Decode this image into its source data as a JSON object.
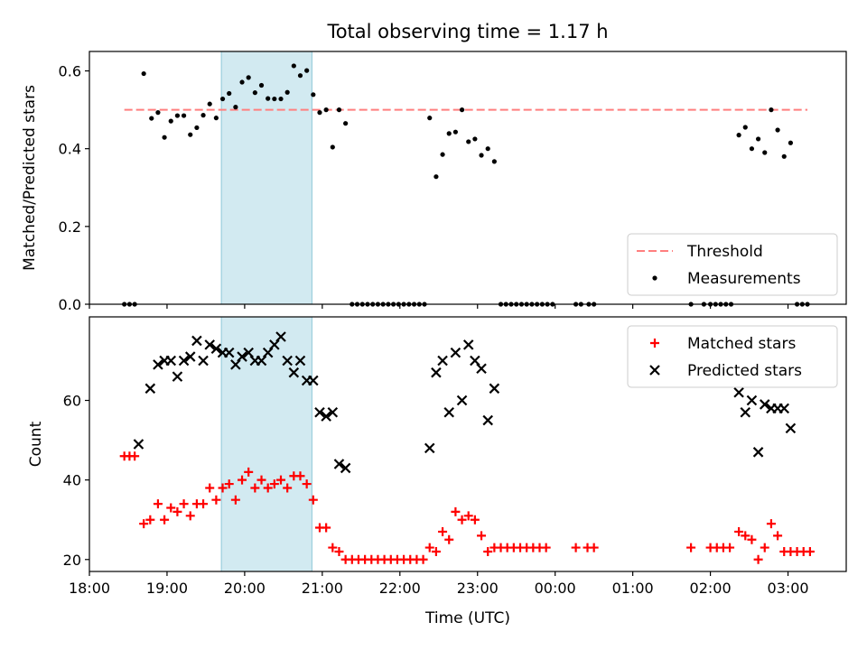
{
  "chart_data": [
    {
      "type": "scatter",
      "title": "Total observing time = 1.17 h",
      "ylabel": "Matched/Predicted stars",
      "xlim": [
        "18:00",
        "03:45"
      ],
      "ylim": [
        0,
        0.65
      ],
      "yticks": [
        0.0,
        0.2,
        0.4,
        0.6
      ],
      "ytick_labels": [
        "0.0",
        "0.2",
        "0.4",
        "0.6"
      ],
      "highlight_span": {
        "start": "19:42",
        "end": "20:52",
        "color": "#add8e6"
      },
      "threshold": {
        "name": "Threshold",
        "value": 0.5,
        "from": "18:27",
        "to": "03:15",
        "color": "#ff7f7f",
        "style": "dashed"
      },
      "series": [
        {
          "name": "Measurements",
          "color": "#000000",
          "marker": "dot",
          "points": [
            [
              "18:27",
              0.0
            ],
            [
              "18:31",
              0.0
            ],
            [
              "18:35",
              0.0
            ],
            [
              "18:42",
              0.593
            ],
            [
              "18:48",
              0.478
            ],
            [
              "18:53",
              0.493
            ],
            [
              "18:58",
              0.429
            ],
            [
              "19:03",
              0.471
            ],
            [
              "19:08",
              0.485
            ],
            [
              "19:13",
              0.485
            ],
            [
              "19:18",
              0.436
            ],
            [
              "19:23",
              0.454
            ],
            [
              "19:28",
              0.486
            ],
            [
              "19:33",
              0.515
            ],
            [
              "19:38",
              0.479
            ],
            [
              "19:43",
              0.528
            ],
            [
              "19:48",
              0.542
            ],
            [
              "19:53",
              0.507
            ],
            [
              "19:58",
              0.571
            ],
            [
              "20:03",
              0.583
            ],
            [
              "20:08",
              0.544
            ],
            [
              "20:13",
              0.563
            ],
            [
              "20:18",
              0.529
            ],
            [
              "20:23",
              0.528
            ],
            [
              "20:28",
              0.528
            ],
            [
              "20:33",
              0.545
            ],
            [
              "20:38",
              0.613
            ],
            [
              "20:43",
              0.588
            ],
            [
              "20:48",
              0.601
            ],
            [
              "20:53",
              0.539
            ],
            [
              "20:58",
              0.493
            ],
            [
              "21:03",
              0.5
            ],
            [
              "21:08",
              0.404
            ],
            [
              "21:13",
              0.5
            ],
            [
              "21:18",
              0.465
            ],
            [
              "21:23",
              0.0
            ],
            [
              "21:27",
              0.0
            ],
            [
              "21:31",
              0.0
            ],
            [
              "21:35",
              0.0
            ],
            [
              "21:39",
              0.0
            ],
            [
              "21:43",
              0.0
            ],
            [
              "21:47",
              0.0
            ],
            [
              "21:51",
              0.0
            ],
            [
              "21:55",
              0.0
            ],
            [
              "21:59",
              0.0
            ],
            [
              "22:03",
              0.0
            ],
            [
              "22:07",
              0.0
            ],
            [
              "22:11",
              0.0
            ],
            [
              "22:15",
              0.0
            ],
            [
              "22:19",
              0.0
            ],
            [
              "22:23",
              0.479
            ],
            [
              "22:28",
              0.328
            ],
            [
              "22:33",
              0.385
            ],
            [
              "22:38",
              0.439
            ],
            [
              "22:43",
              0.443
            ],
            [
              "22:48",
              0.5
            ],
            [
              "22:53",
              0.418
            ],
            [
              "22:58",
              0.425
            ],
            [
              "23:03",
              0.383
            ],
            [
              "23:08",
              0.4
            ],
            [
              "23:13",
              0.367
            ],
            [
              "23:18",
              0.0
            ],
            [
              "23:22",
              0.0
            ],
            [
              "23:26",
              0.0
            ],
            [
              "23:30",
              0.0
            ],
            [
              "23:34",
              0.0
            ],
            [
              "23:38",
              0.0
            ],
            [
              "23:42",
              0.0
            ],
            [
              "23:46",
              0.0
            ],
            [
              "23:50",
              0.0
            ],
            [
              "23:54",
              0.0
            ],
            [
              "23:58",
              0.0
            ],
            [
              "00:16",
              0.0
            ],
            [
              "00:20",
              0.0
            ],
            [
              "00:26",
              0.0
            ],
            [
              "00:30",
              0.0
            ],
            [
              "01:45",
              0.0
            ],
            [
              "01:55",
              0.0
            ],
            [
              "02:00",
              0.0
            ],
            [
              "02:04",
              0.0
            ],
            [
              "02:08",
              0.0
            ],
            [
              "02:12",
              0.0
            ],
            [
              "02:16",
              0.0
            ],
            [
              "02:22",
              0.435
            ],
            [
              "02:27",
              0.455
            ],
            [
              "02:32",
              0.4
            ],
            [
              "02:37",
              0.425
            ],
            [
              "02:42",
              0.39
            ],
            [
              "02:47",
              0.5
            ],
            [
              "02:52",
              0.448
            ],
            [
              "02:57",
              0.38
            ],
            [
              "03:02",
              0.415
            ],
            [
              "03:07",
              0.0
            ],
            [
              "03:11",
              0.0
            ],
            [
              "03:15",
              0.0
            ]
          ]
        }
      ],
      "legend": {
        "position": "lower-right",
        "entries": [
          "Threshold",
          "Measurements"
        ]
      }
    },
    {
      "type": "scatter",
      "xlabel": "Time (UTC)",
      "ylabel": "Count",
      "xlim": [
        "18:00",
        "03:45"
      ],
      "ylim": [
        17,
        81
      ],
      "yticks": [
        20,
        40,
        60
      ],
      "ytick_labels": [
        "20",
        "40",
        "60"
      ],
      "xticks": [
        "18:00",
        "19:00",
        "20:00",
        "21:00",
        "22:00",
        "23:00",
        "00:00",
        "01:00",
        "02:00",
        "03:00"
      ],
      "highlight_span": {
        "start": "19:42",
        "end": "20:52",
        "color": "#add8e6"
      },
      "series": [
        {
          "name": "Matched stars",
          "color": "#ff0000",
          "marker": "plus",
          "points": [
            [
              "18:27",
              46
            ],
            [
              "18:31",
              46
            ],
            [
              "18:35",
              46
            ],
            [
              "18:42",
              29
            ],
            [
              "18:47",
              30
            ],
            [
              "18:53",
              34
            ],
            [
              "18:58",
              30
            ],
            [
              "19:03",
              33
            ],
            [
              "19:08",
              32
            ],
            [
              "19:13",
              34
            ],
            [
              "19:18",
              31
            ],
            [
              "19:23",
              34
            ],
            [
              "19:28",
              34
            ],
            [
              "19:33",
              38
            ],
            [
              "19:38",
              35
            ],
            [
              "19:43",
              38
            ],
            [
              "19:48",
              39
            ],
            [
              "19:53",
              35
            ],
            [
              "19:58",
              40
            ],
            [
              "20:03",
              42
            ],
            [
              "20:08",
              38
            ],
            [
              "20:13",
              40
            ],
            [
              "20:18",
              38
            ],
            [
              "20:23",
              39
            ],
            [
              "20:28",
              40
            ],
            [
              "20:33",
              38
            ],
            [
              "20:38",
              41
            ],
            [
              "20:43",
              41
            ],
            [
              "20:48",
              39
            ],
            [
              "20:53",
              35
            ],
            [
              "20:58",
              28
            ],
            [
              "21:03",
              28
            ],
            [
              "21:08",
              23
            ],
            [
              "21:13",
              22
            ],
            [
              "21:18",
              20
            ],
            [
              "21:23",
              20
            ],
            [
              "21:28",
              20
            ],
            [
              "21:33",
              20
            ],
            [
              "21:38",
              20
            ],
            [
              "21:43",
              20
            ],
            [
              "21:48",
              20
            ],
            [
              "21:53",
              20
            ],
            [
              "21:58",
              20
            ],
            [
              "22:03",
              20
            ],
            [
              "22:08",
              20
            ],
            [
              "22:13",
              20
            ],
            [
              "22:18",
              20
            ],
            [
              "22:23",
              23
            ],
            [
              "22:28",
              22
            ],
            [
              "22:33",
              27
            ],
            [
              "22:38",
              25
            ],
            [
              "22:43",
              32
            ],
            [
              "22:48",
              30
            ],
            [
              "22:53",
              31
            ],
            [
              "22:58",
              30
            ],
            [
              "23:03",
              26
            ],
            [
              "23:08",
              22
            ],
            [
              "23:13",
              23
            ],
            [
              "23:18",
              23
            ],
            [
              "23:23",
              23
            ],
            [
              "23:28",
              23
            ],
            [
              "23:33",
              23
            ],
            [
              "23:38",
              23
            ],
            [
              "23:43",
              23
            ],
            [
              "23:48",
              23
            ],
            [
              "23:53",
              23
            ],
            [
              "00:16",
              23
            ],
            [
              "00:25",
              23
            ],
            [
              "00:30",
              23
            ],
            [
              "01:45",
              23
            ],
            [
              "02:00",
              23
            ],
            [
              "02:05",
              23
            ],
            [
              "02:10",
              23
            ],
            [
              "02:15",
              23
            ],
            [
              "02:22",
              27
            ],
            [
              "02:27",
              26
            ],
            [
              "02:32",
              25
            ],
            [
              "02:37",
              20
            ],
            [
              "02:42",
              23
            ],
            [
              "02:47",
              29
            ],
            [
              "02:52",
              26
            ],
            [
              "02:57",
              22
            ],
            [
              "03:02",
              22
            ],
            [
              "03:07",
              22
            ],
            [
              "03:12",
              22
            ],
            [
              "03:17",
              22
            ]
          ]
        },
        {
          "name": "Predicted stars",
          "color": "#000000",
          "marker": "x",
          "points": [
            [
              "18:38",
              49
            ],
            [
              "18:47",
              63
            ],
            [
              "18:53",
              69
            ],
            [
              "18:58",
              70
            ],
            [
              "19:03",
              70
            ],
            [
              "19:08",
              66
            ],
            [
              "19:13",
              70
            ],
            [
              "19:18",
              71
            ],
            [
              "19:23",
              75
            ],
            [
              "19:28",
              70
            ],
            [
              "19:33",
              74
            ],
            [
              "19:38",
              73
            ],
            [
              "19:43",
              72
            ],
            [
              "19:48",
              72
            ],
            [
              "19:53",
              69
            ],
            [
              "19:58",
              71
            ],
            [
              "20:03",
              72
            ],
            [
              "20:08",
              70
            ],
            [
              "20:13",
              70
            ],
            [
              "20:18",
              72
            ],
            [
              "20:23",
              74
            ],
            [
              "20:28",
              76
            ],
            [
              "20:33",
              70
            ],
            [
              "20:38",
              67
            ],
            [
              "20:43",
              70
            ],
            [
              "20:48",
              65
            ],
            [
              "20:53",
              65
            ],
            [
              "20:58",
              57
            ],
            [
              "21:03",
              56
            ],
            [
              "21:08",
              57
            ],
            [
              "21:13",
              44
            ],
            [
              "21:18",
              43
            ],
            [
              "22:23",
              48
            ],
            [
              "22:28",
              67
            ],
            [
              "22:33",
              70
            ],
            [
              "22:38",
              57
            ],
            [
              "22:43",
              72
            ],
            [
              "22:48",
              60
            ],
            [
              "22:53",
              74
            ],
            [
              "22:58",
              70
            ],
            [
              "23:03",
              68
            ],
            [
              "23:08",
              55
            ],
            [
              "23:13",
              63
            ],
            [
              "02:22",
              62
            ],
            [
              "02:27",
              57
            ],
            [
              "02:32",
              60
            ],
            [
              "02:37",
              47
            ],
            [
              "02:42",
              59
            ],
            [
              "02:47",
              58
            ],
            [
              "02:52",
              58
            ],
            [
              "02:57",
              58
            ],
            [
              "03:02",
              53
            ]
          ]
        }
      ],
      "legend": {
        "position": "upper-right",
        "entries": [
          "Matched stars",
          "Predicted stars"
        ]
      }
    }
  ]
}
